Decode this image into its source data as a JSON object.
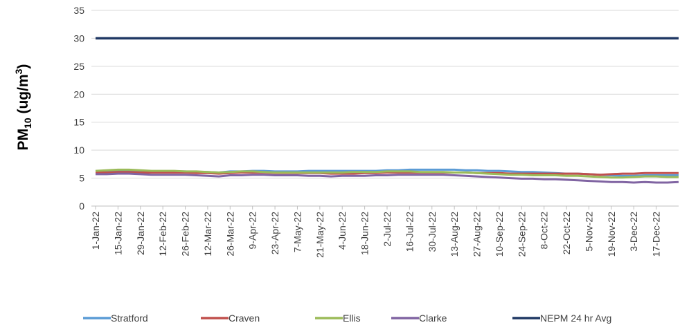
{
  "chart_data": {
    "type": "line",
    "y_label_parts": [
      "PM",
      "10",
      " (ug/m",
      "3",
      ")"
    ],
    "categories": [
      "1-Jan-22",
      null,
      "15-Jan-22",
      null,
      "29-Jan-22",
      null,
      "12-Feb-22",
      null,
      "26-Feb-22",
      null,
      "12-Mar-22",
      null,
      "26-Mar-22",
      null,
      "9-Apr-22",
      null,
      "23-Apr-22",
      null,
      "7-May-22",
      null,
      "21-May-22",
      null,
      "4-Jun-22",
      null,
      "18-Jun-22",
      null,
      "2-Jul-22",
      null,
      "16-Jul-22",
      null,
      "30-Jul-22",
      null,
      "13-Aug-22",
      null,
      "27-Aug-22",
      null,
      "10-Sep-22",
      null,
      "24-Sep-22",
      null,
      "8-Oct-22",
      null,
      "22-Oct-22",
      null,
      "5-Nov-22",
      null,
      "19-Nov-22",
      null,
      "3-Dec-22",
      null,
      "17-Dec-22",
      null,
      null
    ],
    "series": [
      {
        "name": "Stratford",
        "color": "#5b9bd5",
        "values": [
          6.2,
          6.3,
          6.4,
          6.4,
          6.3,
          6.2,
          6.2,
          6.2,
          6.2,
          6.1,
          6.1,
          6.0,
          6.2,
          6.2,
          6.3,
          6.3,
          6.2,
          6.2,
          6.2,
          6.3,
          6.3,
          6.3,
          6.3,
          6.3,
          6.3,
          6.3,
          6.4,
          6.4,
          6.5,
          6.5,
          6.5,
          6.5,
          6.5,
          6.4,
          6.4,
          6.3,
          6.3,
          6.2,
          6.1,
          6.1,
          6.0,
          5.9,
          5.8,
          5.8,
          5.7,
          5.6,
          5.5,
          5.4,
          5.4,
          5.5,
          5.5,
          5.5,
          5.5
        ]
      },
      {
        "name": "Craven",
        "color": "#c0504d",
        "values": [
          6.0,
          6.0,
          6.1,
          6.1,
          6.0,
          6.0,
          6.0,
          6.0,
          6.0,
          5.9,
          5.9,
          5.8,
          5.9,
          6.0,
          6.0,
          6.0,
          5.9,
          5.9,
          5.9,
          5.9,
          5.9,
          5.8,
          5.8,
          5.8,
          5.9,
          5.9,
          6.0,
          6.0,
          6.0,
          6.0,
          6.0,
          6.0,
          6.0,
          6.0,
          5.9,
          5.9,
          5.9,
          5.8,
          5.8,
          5.8,
          5.8,
          5.8,
          5.8,
          5.8,
          5.7,
          5.6,
          5.7,
          5.8,
          5.8,
          5.9,
          5.9,
          5.9,
          5.9
        ]
      },
      {
        "name": "Ellis",
        "color": "#9bbb59",
        "values": [
          6.3,
          6.4,
          6.5,
          6.5,
          6.4,
          6.3,
          6.3,
          6.3,
          6.2,
          6.2,
          6.1,
          6.0,
          6.1,
          6.2,
          6.2,
          6.1,
          6.0,
          6.0,
          6.0,
          6.0,
          6.0,
          6.0,
          6.0,
          6.1,
          6.1,
          6.1,
          6.2,
          6.2,
          6.2,
          6.1,
          6.1,
          6.1,
          6.0,
          6.0,
          5.9,
          5.8,
          5.7,
          5.6,
          5.6,
          5.5,
          5.5,
          5.5,
          5.4,
          5.4,
          5.3,
          5.2,
          5.1,
          5.1,
          5.2,
          5.3,
          5.3,
          5.2,
          5.2
        ]
      },
      {
        "name": "Clarke",
        "color": "#8064a2",
        "values": [
          5.7,
          5.7,
          5.8,
          5.8,
          5.7,
          5.6,
          5.6,
          5.6,
          5.6,
          5.5,
          5.4,
          5.3,
          5.5,
          5.5,
          5.6,
          5.6,
          5.5,
          5.5,
          5.5,
          5.4,
          5.4,
          5.3,
          5.4,
          5.4,
          5.4,
          5.5,
          5.5,
          5.6,
          5.6,
          5.6,
          5.6,
          5.6,
          5.5,
          5.4,
          5.3,
          5.2,
          5.1,
          5.0,
          4.9,
          4.9,
          4.8,
          4.8,
          4.7,
          4.6,
          4.5,
          4.4,
          4.3,
          4.3,
          4.2,
          4.3,
          4.2,
          4.2,
          4.3
        ]
      },
      {
        "name": "NEPM 24 hr Avg",
        "color": "#1f3864",
        "values": [
          30,
          30,
          30,
          30,
          30,
          30,
          30,
          30,
          30,
          30,
          30,
          30,
          30,
          30,
          30,
          30,
          30,
          30,
          30,
          30,
          30,
          30,
          30,
          30,
          30,
          30,
          30,
          30,
          30,
          30,
          30,
          30,
          30,
          30,
          30,
          30,
          30,
          30,
          30,
          30,
          30,
          30,
          30,
          30,
          30,
          30,
          30,
          30,
          30,
          30,
          30,
          30,
          30
        ]
      }
    ],
    "ylim": [
      0,
      35
    ],
    "yticks": [
      0,
      5,
      10,
      15,
      20,
      25,
      30,
      35
    ],
    "grid": true,
    "legend": "bottom"
  }
}
